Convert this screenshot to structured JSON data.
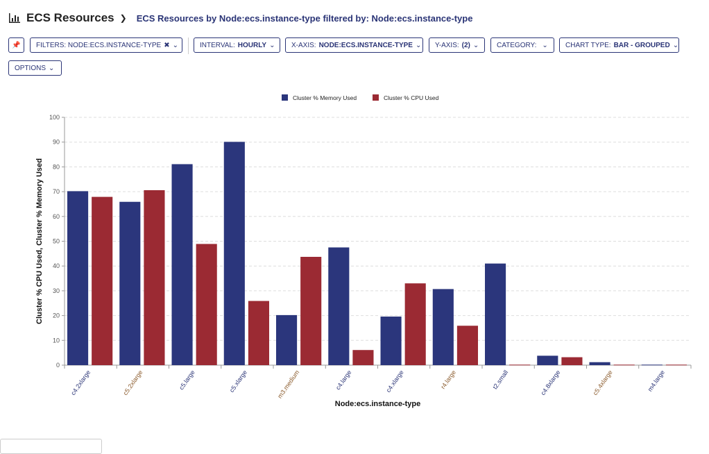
{
  "header": {
    "title": "ECS Resources",
    "subtitle": "ECS Resources by Node:ecs.instance-type filtered by: Node:ecs.instance-type"
  },
  "toolbar": {
    "filters": {
      "label": "FILTERS: NODE:ECS.INSTANCE-TYPE"
    },
    "interval": {
      "label": "INTERVAL:",
      "value": "HOURLY"
    },
    "xaxis": {
      "label": "X-AXIS:",
      "value": "NODE:ECS.INSTANCE-TYPE"
    },
    "yaxis": {
      "label": "Y-AXIS:",
      "value": "(2)"
    },
    "category": {
      "label": "CATEGORY:",
      "value": ""
    },
    "charttype": {
      "label": "CHART TYPE:",
      "value": "BAR - GROUPED"
    },
    "options": {
      "label": "OPTIONS"
    }
  },
  "chart_data": {
    "type": "bar",
    "xlabel": "Node:ecs.instance-type",
    "ylabel": "Cluster % CPU Used, Cluster % Memory Used",
    "ylim": [
      0,
      100
    ],
    "yticks": [
      0,
      10,
      20,
      30,
      40,
      50,
      60,
      70,
      80,
      90,
      100
    ],
    "grid": true,
    "legend_position": "top-center",
    "categories": [
      "c4.2xlarge",
      "c5.2xlarge",
      "c5.large",
      "c5.xlarge",
      "m3.medium",
      "c4.large",
      "c4.xlarge",
      "r4.large",
      "t2.small",
      "c4.8xlarge",
      "c5.4xlarge",
      "m4.large"
    ],
    "series": [
      {
        "name": "Cluster % Memory Used",
        "color": "#2b367c",
        "values": [
          70.2,
          65.9,
          81.1,
          90.1,
          20.2,
          47.5,
          19.6,
          30.7,
          41.0,
          3.8,
          1.2,
          0.2
        ]
      },
      {
        "name": "Cluster % CPU Used",
        "color": "#9b2a33",
        "values": [
          67.9,
          70.6,
          48.9,
          25.9,
          43.7,
          6.1,
          33.0,
          15.9,
          0.2,
          3.2,
          0.2,
          0.2
        ]
      }
    ]
  }
}
